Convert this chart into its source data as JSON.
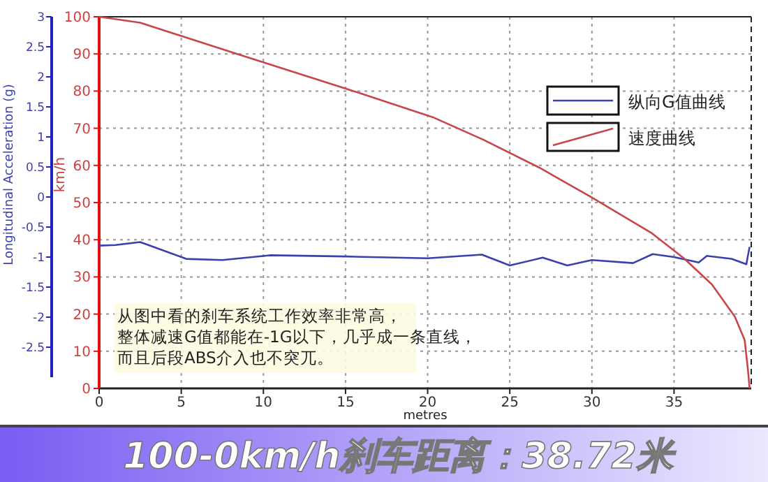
{
  "chart_data": {
    "type": "line",
    "title": "100-0km/h刹车距离：38.72米",
    "xlabel": "metres",
    "ylabel": "km/h",
    "y2label": "Longitudinal Acceleration (g)",
    "annotations": [
      "从图中看的刹车系统工作效率非常高，整体减速G值都能在-1G以下，几乎成一条直线，而且后段ABS介入也不突兀。"
    ],
    "xlim": [
      0,
      39.7
    ],
    "xticks": [
      0,
      5,
      10,
      15,
      20,
      25,
      30,
      35
    ],
    "ylim": [
      0,
      100
    ],
    "yticks": [
      0,
      10,
      20,
      30,
      40,
      50,
      60,
      70,
      80,
      90,
      100
    ],
    "y2lim": [
      -3,
      3
    ],
    "y2ticks": [
      -2.5,
      -2,
      -1.5,
      -1,
      -0.5,
      0,
      0.5,
      1,
      1.5,
      2,
      2.5,
      3
    ],
    "grid": true,
    "legend": "top right",
    "line_style": "solid",
    "marker": "none",
    "series": [
      {
        "name": "纵向G值曲线",
        "color": "#3b3fb0",
        "axis": "y2",
        "x": [
          0,
          1,
          2.5,
          5.3,
          7.5,
          10.4,
          15,
          20,
          23.3,
          25,
          27,
          28.5,
          30,
          32.5,
          33.7,
          35,
          36.5,
          37,
          38.5,
          39.4,
          39.6
        ],
        "values": [
          -0.81,
          -0.8,
          -0.75,
          -1.03,
          -1.05,
          -0.97,
          -0.99,
          -1.02,
          -0.96,
          -1.14,
          -1.01,
          -1.14,
          -1.05,
          -1.1,
          -0.95,
          -1,
          -1.09,
          -0.98,
          -1.03,
          -1.12,
          -0.83
        ]
      },
      {
        "name": "速度曲线",
        "color": "#c8464a",
        "x": [
          0,
          2.5,
          8.4,
          15,
          20.3,
          23.4,
          26.8,
          29.9,
          33.6,
          35.6,
          37.3,
          38.7,
          39.3,
          39.5,
          39.6
        ],
        "values": [
          100,
          98.4,
          90,
          80.7,
          73,
          66.9,
          59.4,
          51.6,
          41.9,
          35,
          28,
          19.3,
          13,
          5,
          0
        ]
      }
    ]
  }
}
